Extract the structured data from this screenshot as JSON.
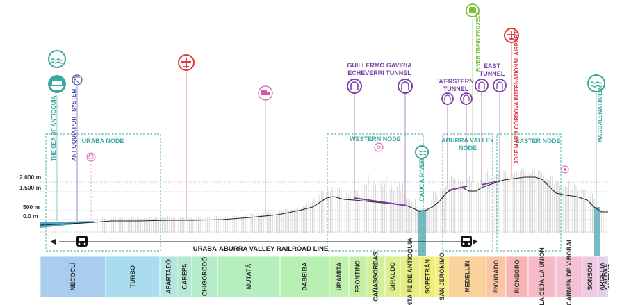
{
  "colors": {
    "teal": "#3aa89c",
    "blue_port": "#4a4aa6",
    "red": "#e03a3a",
    "pink": "#d35aa8",
    "purple": "#7a3fa6",
    "green_river": "#7bbf3f",
    "river_bar": "#5fb0b8",
    "terrain_fill": "#c8c8c8",
    "profile_line": "#222222",
    "sea_fill": "#4ea6c4"
  },
  "elevation_labels": [
    "2.000 m",
    "1.500 m",
    "500 m",
    "0.0 m"
  ],
  "nodes": {
    "uraba": "URABA NODE",
    "western": "WESTERN NODE",
    "aburra_line1": "ABURRA VALLEY",
    "aburra_line2": "NODE",
    "easter": "EASTER NODE"
  },
  "landmarks": {
    "sea": "THE SEA OF ANTIOQUIA",
    "port": "ANTIOQUIA PORT SYSTEM",
    "tunnel_gav_line1": "GUILLERMO GAVIRIA",
    "tunnel_gav_line2": "ECHEVERRI TUNNEL",
    "western_tunnel_line1": "WERSTERN",
    "western_tunnel_line2": "TUNNEL",
    "east_tunnel_line1": "EAST",
    "east_tunnel_line2": "TUNNEL",
    "river_train": "RIVER TRAIN PROJECT",
    "airport": "JOSÉ MARÍA CÓRDOVA INTERNATIONAL AIRPORT",
    "cauca": "CAUCA RIVER",
    "magdalena": "MAGDALENA RIVER"
  },
  "railroad_label": "URABA-ABURRA VALLEY RAILROAD LINE",
  "municipalities": [
    {
      "name": "NECOCLÍ",
      "color": "#a9cdef"
    },
    {
      "name": "TURBO",
      "color": "#a9dcef"
    },
    {
      "name": "APARTADÓ",
      "color": "#b4e5df"
    },
    {
      "name": "CAREPA",
      "color": "#b4e9d3"
    },
    {
      "name": "CHIGORODÓ",
      "color": "#b4ecc8"
    },
    {
      "name": "MUTATÁ",
      "color": "#b5efbd"
    },
    {
      "name": "DABEIBA",
      "color": "#b8f0b4"
    },
    {
      "name": "URAMITA",
      "color": "#c2f2b0"
    },
    {
      "name": "FRONTINO",
      "color": "#c6f0a6"
    },
    {
      "name": "CAÑASGORDAS",
      "color": "#d2f19d"
    },
    {
      "name": "GIRALDO",
      "color": "#dcf08f"
    },
    {
      "name": "SANTA FE DE ANTIOQUIA",
      "color": "#e6ef84"
    },
    {
      "name": "SOPETRÁN",
      "color": "#eef07a"
    },
    {
      "name": "SAN JERÓNIMO",
      "color": "#f5ed86"
    },
    {
      "name": "MEDELLÍN",
      "color": "#fad39b"
    },
    {
      "name": "ENVIGADO",
      "color": "#fbc6a6"
    },
    {
      "name": "RIONEGRO",
      "color": "#f8b4b4"
    },
    {
      "name": "LA CEJA LA UNIÓN",
      "color": "#f6b9c6"
    },
    {
      "name": "EL CARMEN DE VIBORAL",
      "color": "#f2c1d3"
    },
    {
      "name": "SONSÓN",
      "color": "#eec9e0"
    },
    {
      "name": "ARGELIA",
      "color": "#e6cde8"
    },
    {
      "name": "CALDAS",
      "color": "#dcd3ee"
    }
  ]
}
